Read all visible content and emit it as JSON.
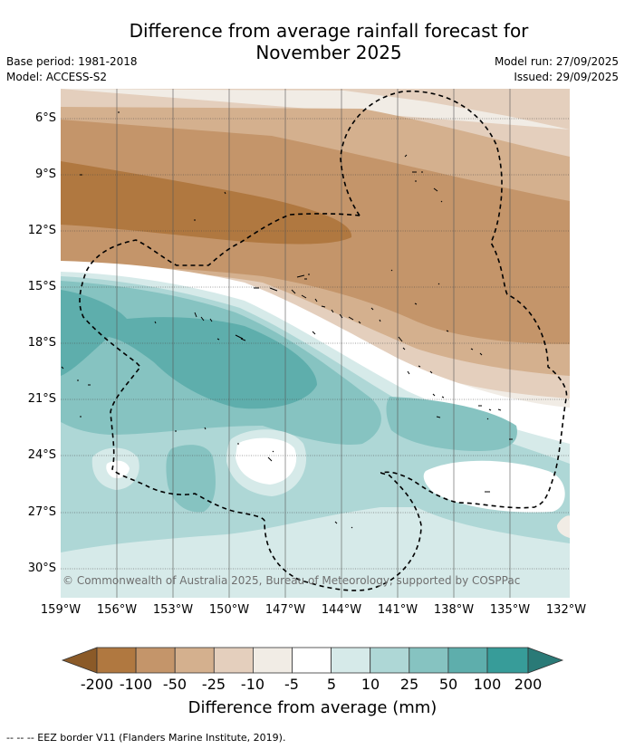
{
  "title": {
    "line1": "Difference from average rainfall forecast for",
    "line2": "November 2025"
  },
  "meta": {
    "base_period": "Base period: 1981-2018",
    "model": "Model: ACCESS-S2",
    "model_run": "Model run: 27/09/2025",
    "issued": "Issued: 29/09/2025"
  },
  "map": {
    "lat_labels": [
      "6°S",
      "9°S",
      "12°S",
      "15°S",
      "18°S",
      "21°S",
      "24°S",
      "27°S",
      "30°S"
    ],
    "lon_labels": [
      "159°W",
      "156°W",
      "153°W",
      "150°W",
      "147°W",
      "144°W",
      "141°W",
      "138°W",
      "135°W",
      "132°W"
    ],
    "copyright": "© Commonwealth of Australia 2025, Bureau of Meteorology, supported by COSPPac"
  },
  "colorbar": {
    "ticks": [
      "-200",
      "-100",
      "-50",
      "-25",
      "-10",
      "-5",
      "5",
      "10",
      "25",
      "50",
      "100",
      "200"
    ],
    "colors": [
      "#8b5a28",
      "#b07840",
      "#c4956a",
      "#d4b08e",
      "#e4cfbd",
      "#f1ece5",
      "#ffffff",
      "#d6eae9",
      "#aed7d6",
      "#86c3c1",
      "#5eaeac",
      "#379c99",
      "#2a7a77"
    ],
    "label": "Difference from average (mm)"
  },
  "footnote": "--  --  -- EEZ border V11 (Flanders Marine Institute, 2019)."
}
